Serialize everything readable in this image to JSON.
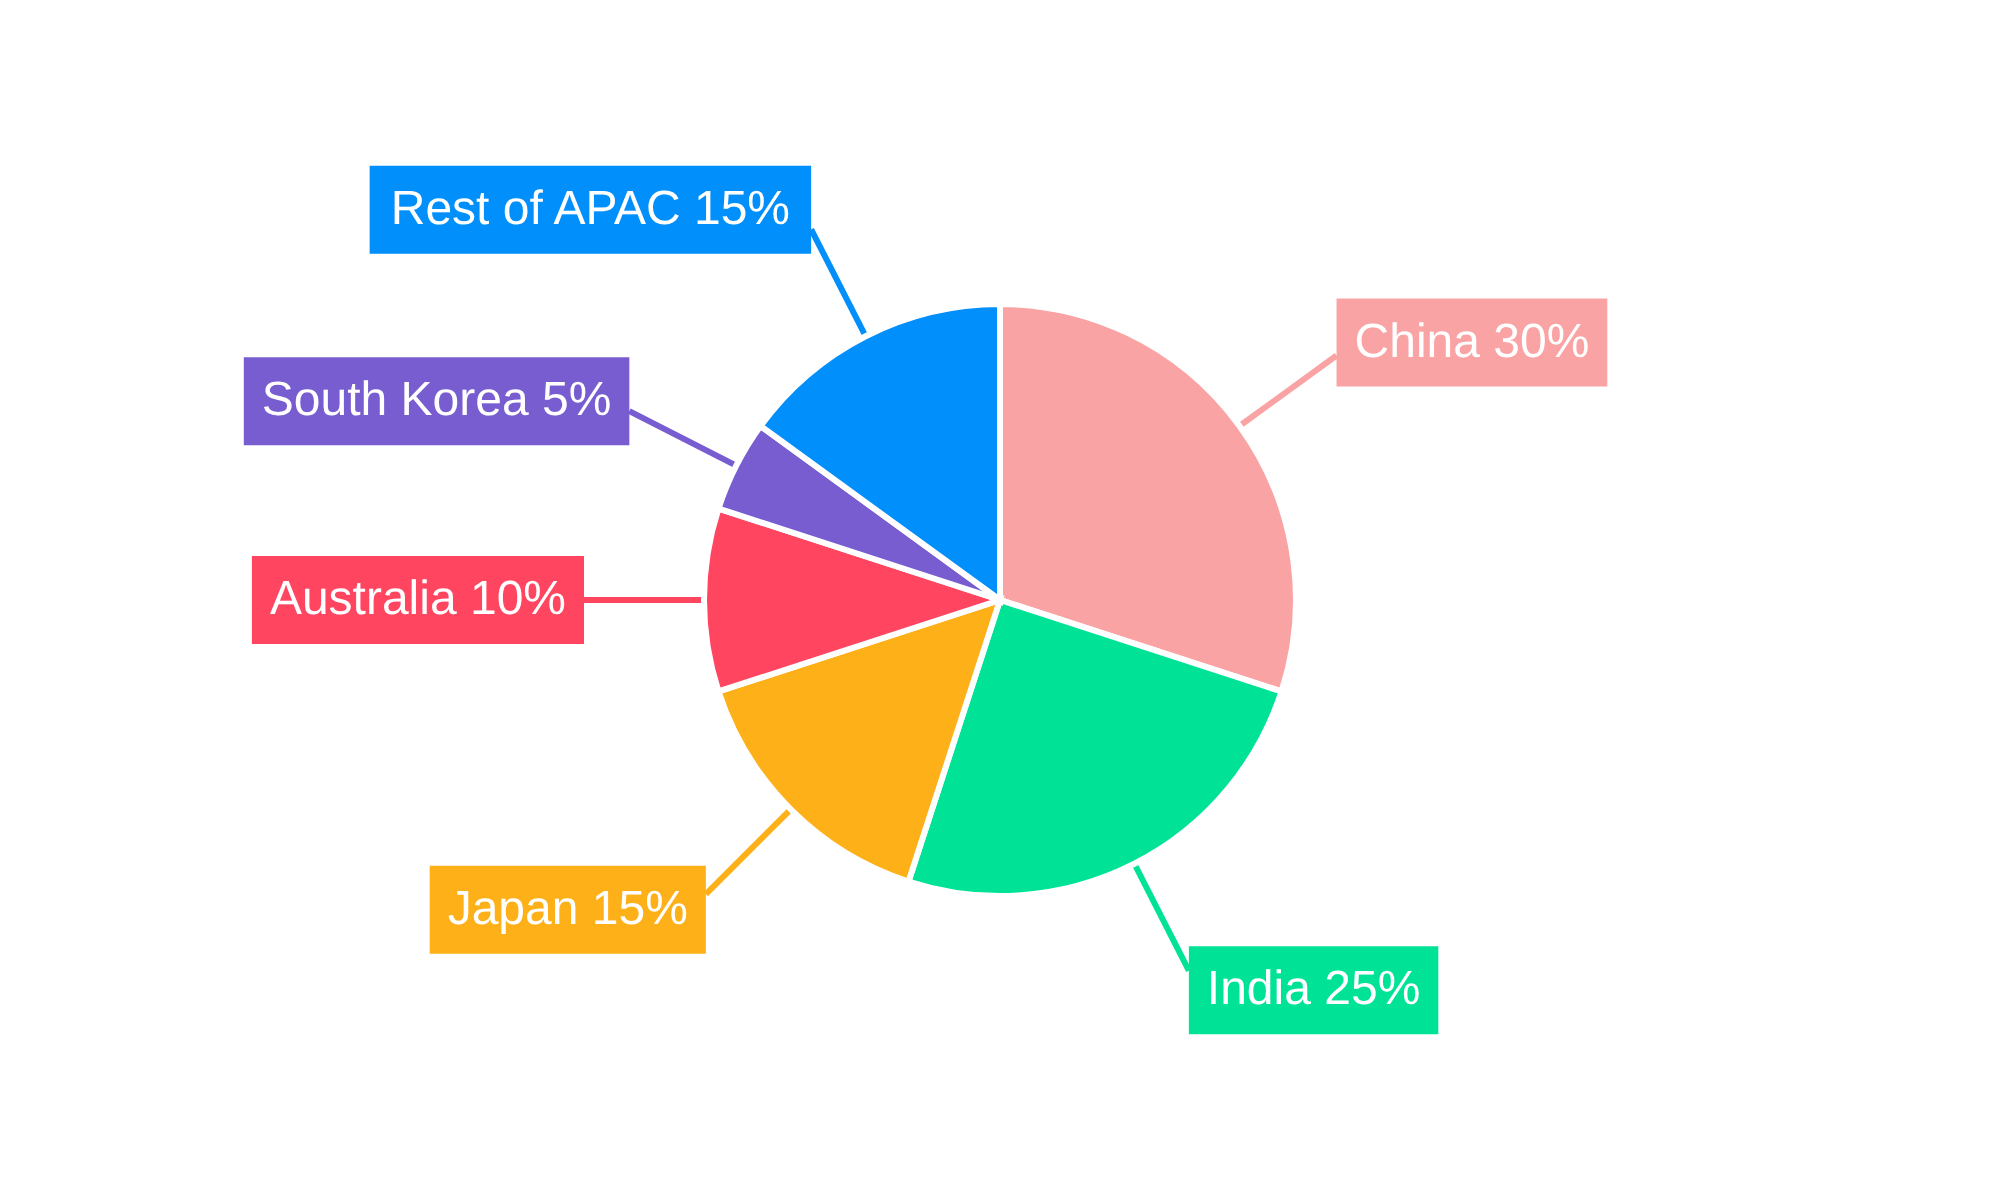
{
  "chart_data": {
    "type": "pie",
    "categories": [
      "China",
      "India",
      "Japan",
      "Australia",
      "South Korea",
      "Rest of APAC"
    ],
    "values": [
      30,
      25,
      15,
      10,
      5,
      15
    ],
    "colors": [
      "#f9a3a4",
      "#00e396",
      "#feb019",
      "#ff4560",
      "#775dd0",
      "#008ffb"
    ],
    "value_labels": [
      "30%",
      "25%",
      "15%",
      "10%",
      "5%",
      "15%"
    ]
  }
}
